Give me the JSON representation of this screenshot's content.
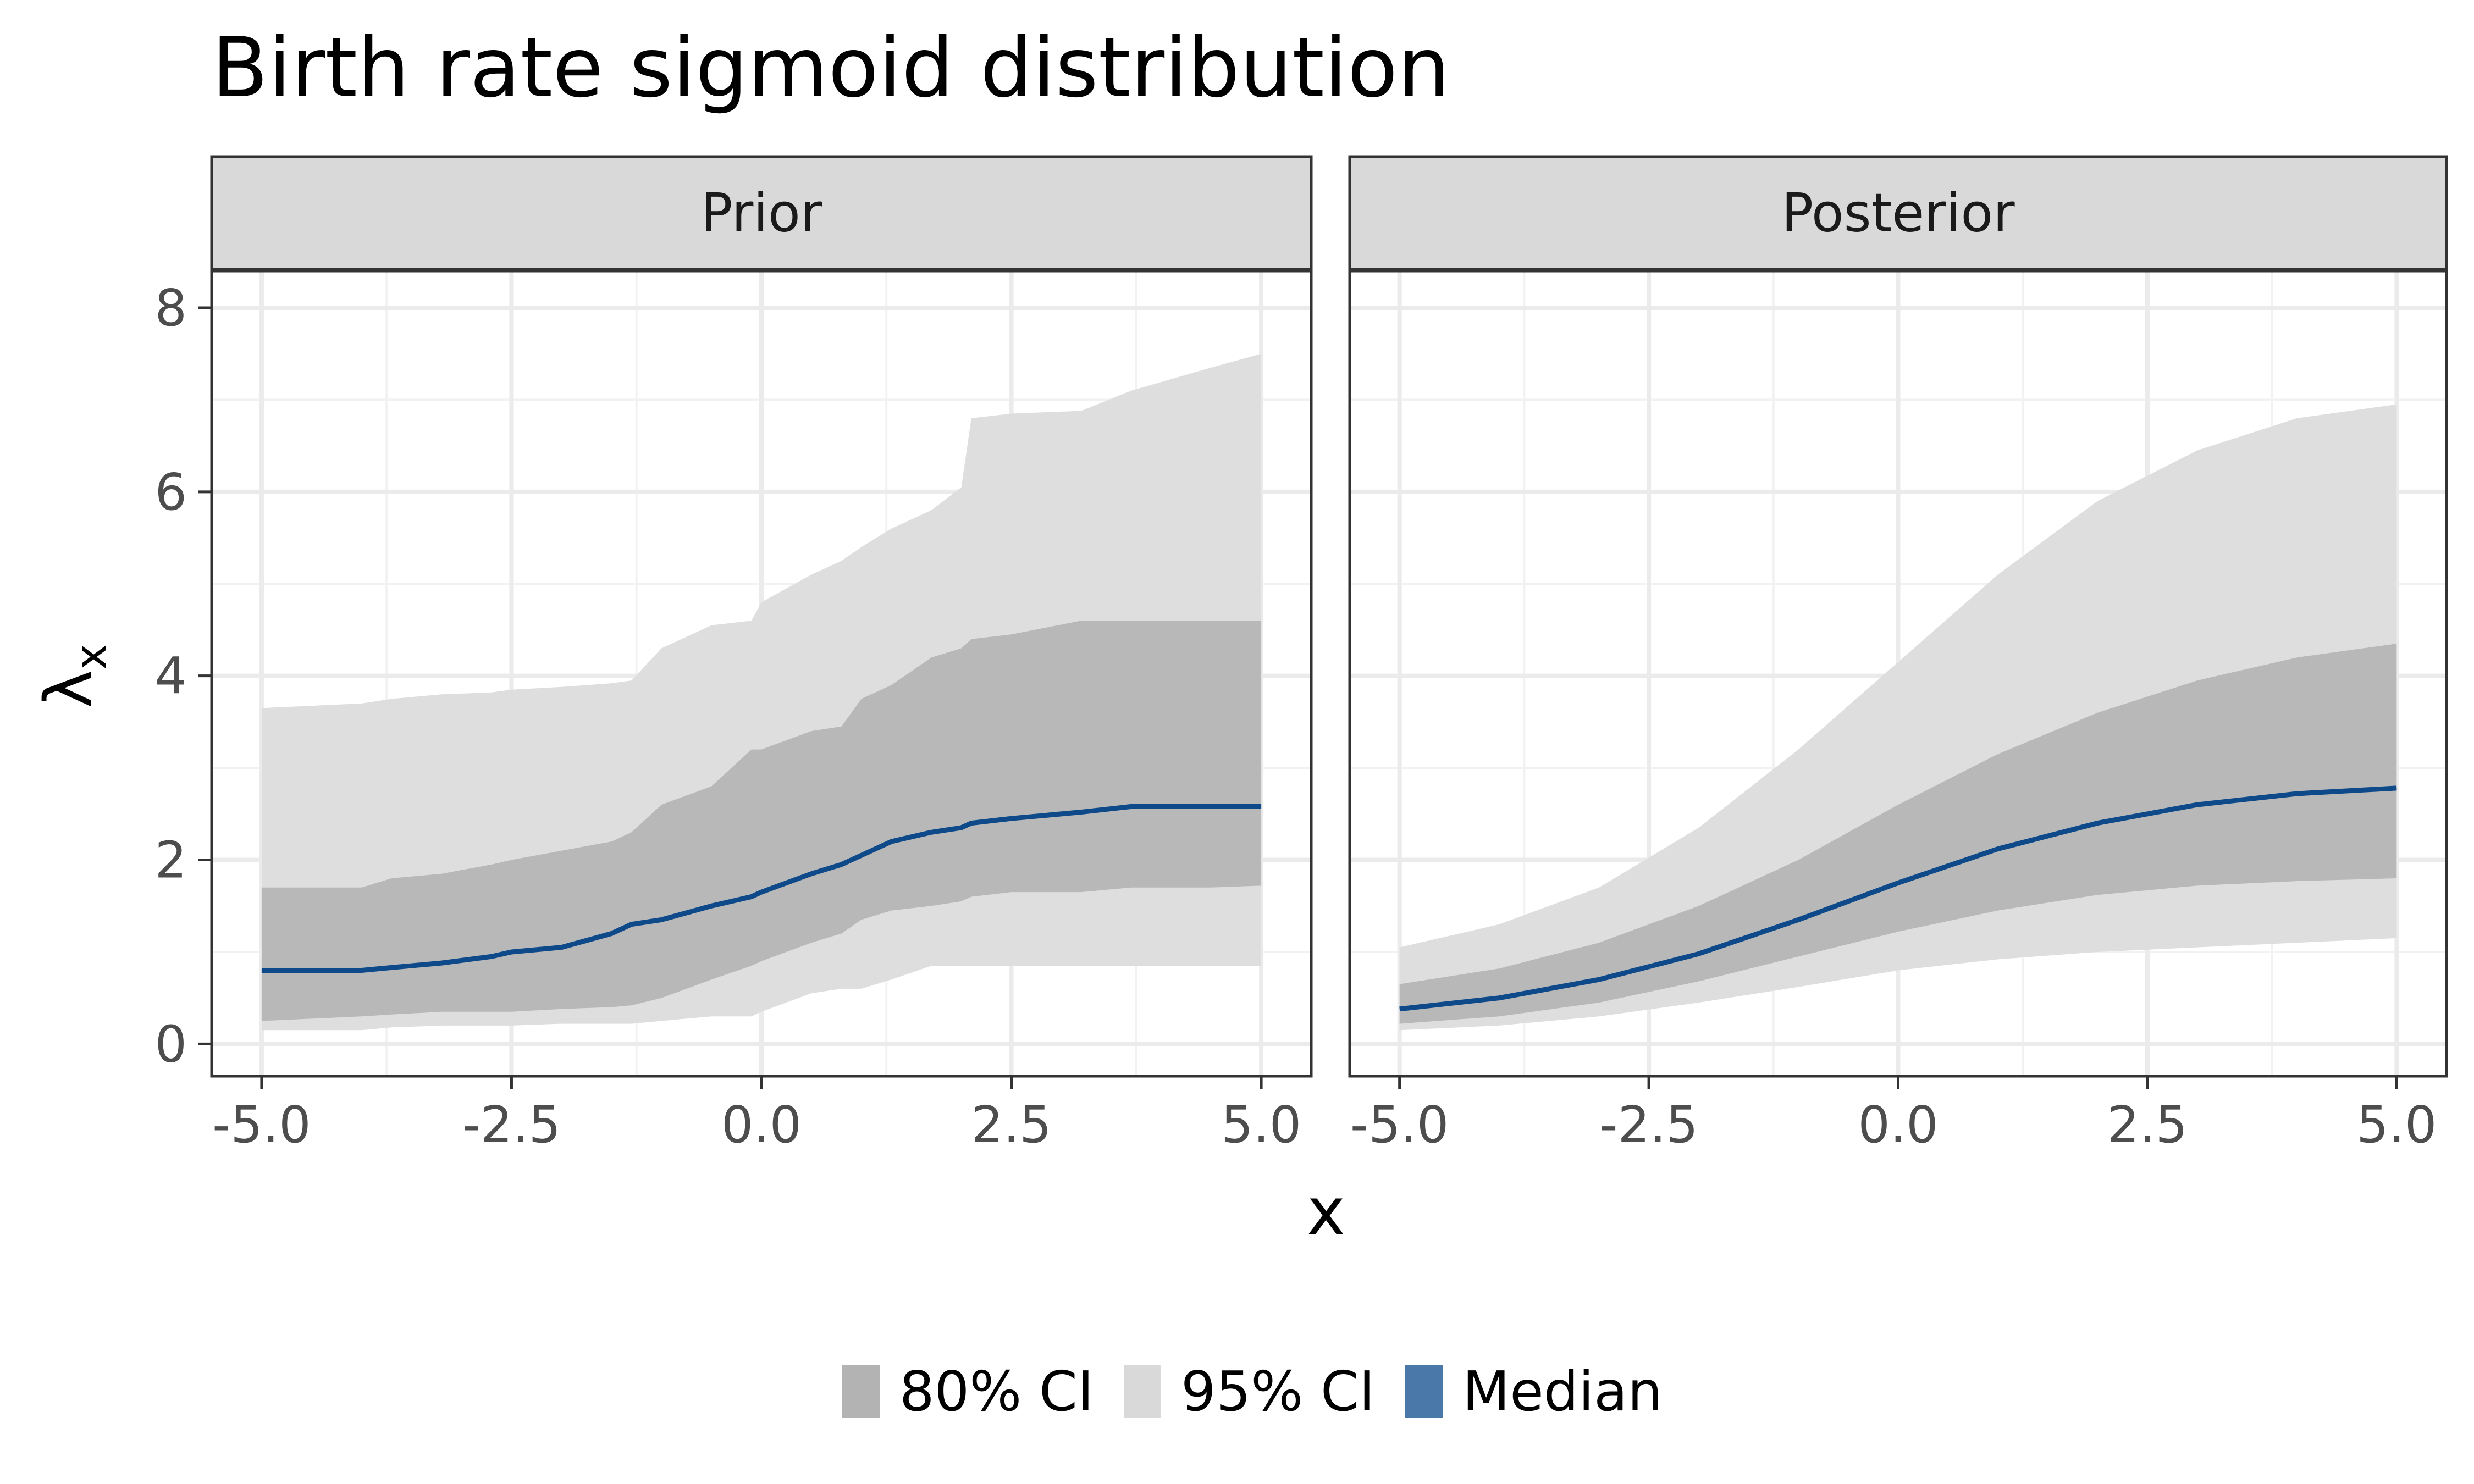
{
  "chart_data": {
    "type": "area",
    "title": "Birth rate sigmoid distribution",
    "xlabel": "x",
    "ylabel": "λ",
    "ylabel_subscript": "x",
    "xlim": [
      -5.5,
      5.5
    ],
    "ylim": [
      -0.35,
      8.4
    ],
    "x_ticks": [
      -5.0,
      -2.5,
      0.0,
      2.5,
      5.0
    ],
    "x_tick_labels": [
      "-5.0",
      "-2.5",
      "0.0",
      "2.5",
      "5.0"
    ],
    "y_ticks": [
      0,
      2,
      4,
      6,
      8
    ],
    "y_tick_labels": [
      "0",
      "2",
      "4",
      "6",
      "8"
    ],
    "grid": true,
    "legend": {
      "position": "bottom",
      "items": [
        {
          "label": "80% CI",
          "color": "#b3b3b3"
        },
        {
          "label": "95% CI",
          "color": "#d9d9d9"
        },
        {
          "label": "Median",
          "color": "#4a78a8"
        }
      ]
    },
    "colors": {
      "ci80": "#b8b8b8",
      "ci95": "#dedede",
      "median": "#0e4a8a"
    },
    "panels": [
      {
        "name": "Prior",
        "x": [
          -5.0,
          -4.0,
          -3.7,
          -3.2,
          -2.7,
          -2.5,
          -2.0,
          -1.5,
          -1.3,
          -1.0,
          -0.5,
          -0.1,
          0.0,
          0.5,
          0.8,
          1.0,
          1.3,
          1.7,
          2.0,
          2.1,
          2.5,
          3.2,
          3.7,
          4.5,
          5.0
        ],
        "ci95_lower": [
          0.15,
          0.15,
          0.18,
          0.2,
          0.2,
          0.2,
          0.22,
          0.22,
          0.22,
          0.25,
          0.3,
          0.3,
          0.35,
          0.55,
          0.6,
          0.6,
          0.7,
          0.85,
          0.85,
          0.85,
          0.85,
          0.85,
          0.85,
          0.85,
          0.85
        ],
        "ci80_lower": [
          0.25,
          0.3,
          0.32,
          0.35,
          0.35,
          0.35,
          0.38,
          0.4,
          0.42,
          0.5,
          0.7,
          0.85,
          0.9,
          1.1,
          1.2,
          1.35,
          1.45,
          1.5,
          1.55,
          1.6,
          1.65,
          1.65,
          1.7,
          1.7,
          1.72
        ],
        "median": [
          0.8,
          0.8,
          0.83,
          0.88,
          0.95,
          1.0,
          1.05,
          1.2,
          1.3,
          1.35,
          1.5,
          1.6,
          1.65,
          1.85,
          1.95,
          2.05,
          2.2,
          2.3,
          2.35,
          2.4,
          2.45,
          2.52,
          2.58,
          2.58,
          2.58
        ],
        "ci80_upper": [
          1.7,
          1.7,
          1.8,
          1.85,
          1.95,
          2.0,
          2.1,
          2.2,
          2.3,
          2.6,
          2.8,
          3.2,
          3.2,
          3.4,
          3.45,
          3.75,
          3.9,
          4.2,
          4.3,
          4.4,
          4.45,
          4.6,
          4.6,
          4.6,
          4.6
        ],
        "ci95_upper": [
          3.65,
          3.7,
          3.75,
          3.8,
          3.82,
          3.85,
          3.88,
          3.92,
          3.95,
          4.3,
          4.55,
          4.6,
          4.8,
          5.1,
          5.25,
          5.4,
          5.6,
          5.8,
          6.05,
          6.8,
          6.85,
          6.88,
          7.1,
          7.35,
          7.5
        ]
      },
      {
        "name": "Posterior",
        "x": [
          -5.0,
          -4.0,
          -3.0,
          -2.0,
          -1.0,
          0.0,
          1.0,
          2.0,
          3.0,
          4.0,
          5.0
        ],
        "ci95_lower": [
          0.15,
          0.2,
          0.3,
          0.45,
          0.62,
          0.8,
          0.92,
          1.0,
          1.05,
          1.1,
          1.15
        ],
        "ci80_lower": [
          0.22,
          0.3,
          0.45,
          0.68,
          0.95,
          1.22,
          1.45,
          1.62,
          1.72,
          1.77,
          1.8
        ],
        "median": [
          0.38,
          0.5,
          0.7,
          0.98,
          1.35,
          1.75,
          2.12,
          2.4,
          2.6,
          2.72,
          2.78
        ],
        "ci80_upper": [
          0.65,
          0.82,
          1.1,
          1.5,
          2.0,
          2.6,
          3.15,
          3.6,
          3.95,
          4.2,
          4.35
        ],
        "ci95_upper": [
          1.05,
          1.3,
          1.7,
          2.35,
          3.2,
          4.15,
          5.1,
          5.9,
          6.45,
          6.8,
          6.95
        ]
      }
    ]
  }
}
